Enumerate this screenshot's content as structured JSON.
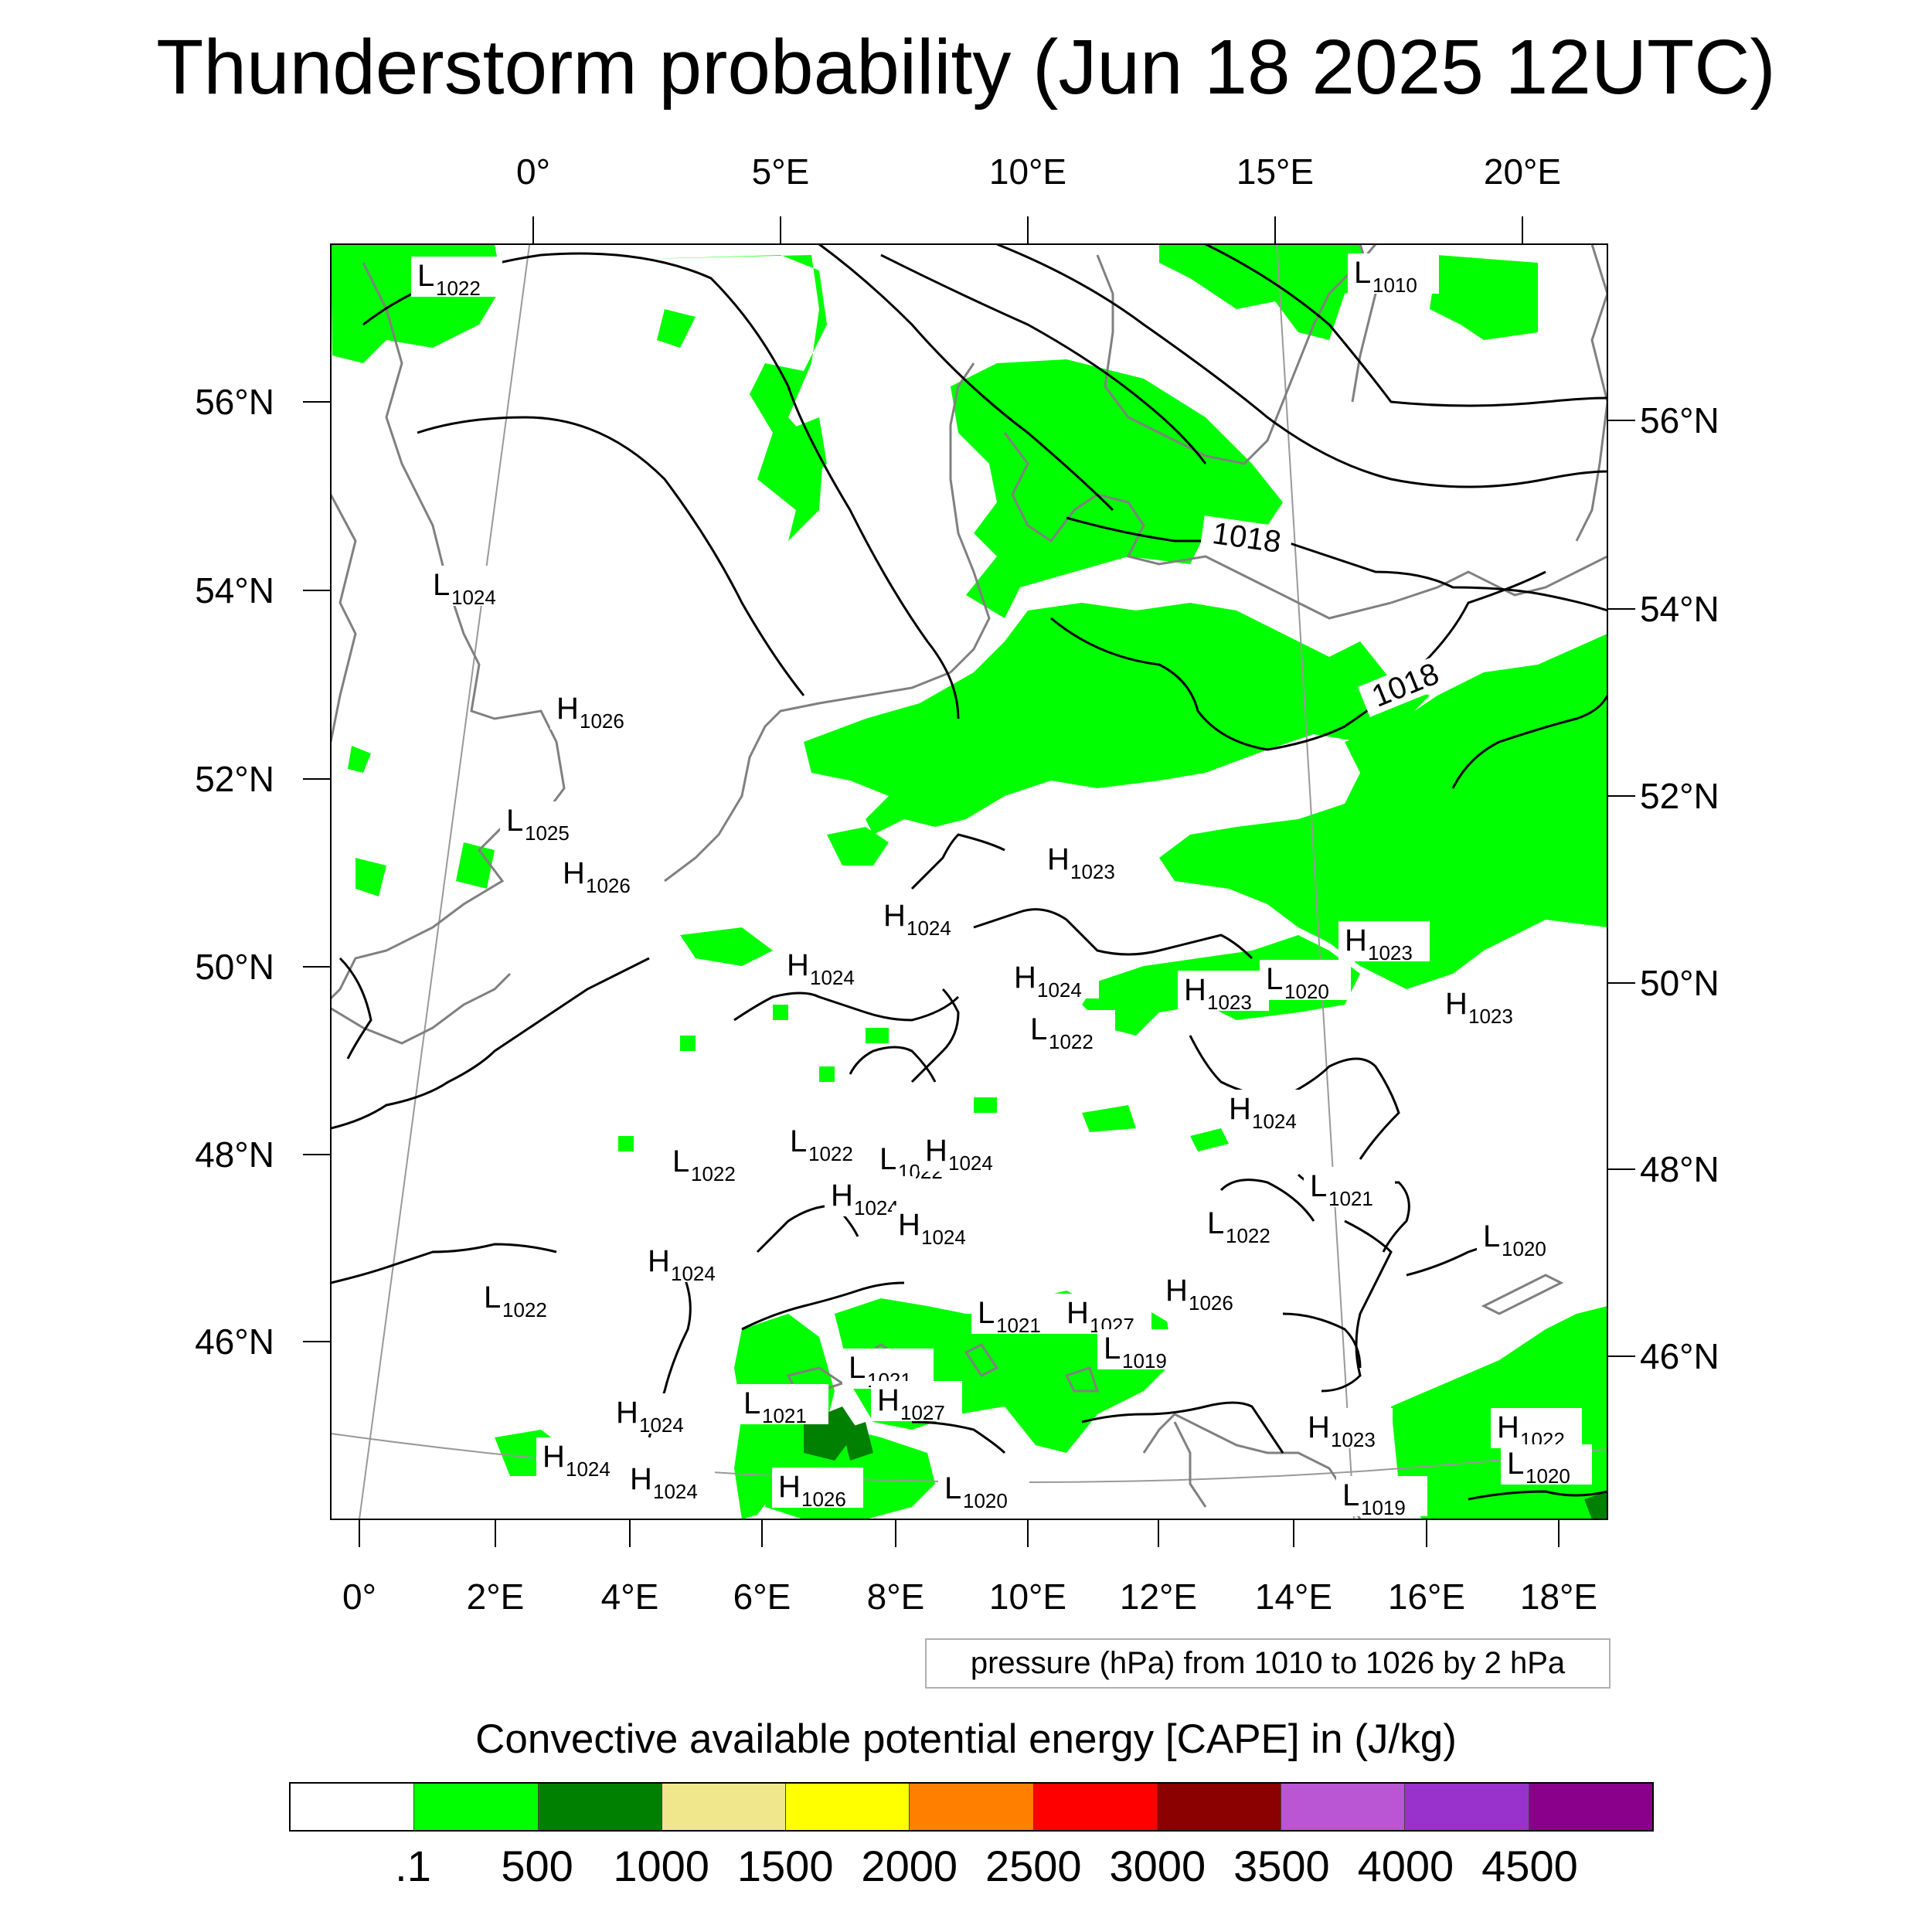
{
  "title": "Thunderstorm probability (Jun 18 2025 12UTC)",
  "top_axis": {
    "labels": [
      "0°",
      "5°E",
      "10°E",
      "15°E",
      "20°E"
    ]
  },
  "bottom_axis": {
    "labels": [
      "0°",
      "2°E",
      "4°E",
      "6°E",
      "8°E",
      "10°E",
      "12°E",
      "14°E",
      "16°E",
      "18°E"
    ]
  },
  "left_axis": {
    "labels": [
      "56°N",
      "54°N",
      "52°N",
      "50°N",
      "48°N",
      "46°N"
    ]
  },
  "right_axis": {
    "labels": [
      "56°N",
      "54°N",
      "52°N",
      "50°N",
      "48°N",
      "46°N"
    ]
  },
  "pressure_info": "pressure (hPa) from 1010 to 1026 by 2 hPa",
  "colorbar": {
    "title": "Convective available potential energy [CAPE] in (J/kg)",
    "colors": [
      "#ffffff",
      "#00ff00",
      "#008000",
      "#f0e68c",
      "#ffff00",
      "#ff8000",
      "#ff0000",
      "#8b0000",
      "#ba55d3",
      "#9932cc",
      "#8b008b"
    ],
    "labels": [
      ".1",
      "500",
      "1000",
      "1500",
      "2000",
      "2500",
      "3000",
      "3500",
      "4000",
      "4500"
    ]
  },
  "isobar_labels": [
    "1018",
    "1018"
  ],
  "pressure_centers": [
    {
      "type": "L",
      "value": "1022"
    },
    {
      "type": "L",
      "value": "1010"
    },
    {
      "type": "L",
      "value": "1024"
    },
    {
      "type": "H",
      "value": "1026"
    },
    {
      "type": "L",
      "value": "1025"
    },
    {
      "type": "H",
      "value": "1026"
    },
    {
      "type": "H",
      "value": "1023"
    },
    {
      "type": "H",
      "value": "1024"
    },
    {
      "type": "H",
      "value": "1023"
    },
    {
      "type": "H",
      "value": "1024"
    },
    {
      "type": "H",
      "value": "1024"
    },
    {
      "type": "L",
      "value": "1022"
    },
    {
      "type": "H",
      "value": "1023"
    },
    {
      "type": "L",
      "value": "1020"
    },
    {
      "type": "H",
      "value": "1023"
    },
    {
      "type": "H",
      "value": "1024"
    },
    {
      "type": "L",
      "value": "1022"
    },
    {
      "type": "L",
      "value": "1022"
    },
    {
      "type": "L",
      "value": "1022"
    },
    {
      "type": "H",
      "value": "1024"
    },
    {
      "type": "L",
      "value": "1021"
    },
    {
      "type": "H",
      "value": "1024"
    },
    {
      "type": "H",
      "value": "1024"
    },
    {
      "type": "L",
      "value": "1022"
    },
    {
      "type": "L",
      "value": "1020"
    },
    {
      "type": "H",
      "value": "1024"
    },
    {
      "type": "H",
      "value": "1026"
    },
    {
      "type": "L",
      "value": "1022"
    },
    {
      "type": "L",
      "value": "1021"
    },
    {
      "type": "H",
      "value": "1027"
    },
    {
      "type": "L",
      "value": "1019"
    },
    {
      "type": "L",
      "value": "1021"
    },
    {
      "type": "H",
      "value": "1027"
    },
    {
      "type": "L",
      "value": "1021"
    },
    {
      "type": "H",
      "value": "1024"
    },
    {
      "type": "H",
      "value": "1024"
    },
    {
      "type": "H",
      "value": "1024"
    },
    {
      "type": "H",
      "value": "1026"
    },
    {
      "type": "L",
      "value": "1020"
    },
    {
      "type": "H",
      "value": "1023"
    },
    {
      "type": "H",
      "value": "1022"
    },
    {
      "type": "L",
      "value": "1020"
    },
    {
      "type": "L",
      "value": "1019"
    }
  ]
}
